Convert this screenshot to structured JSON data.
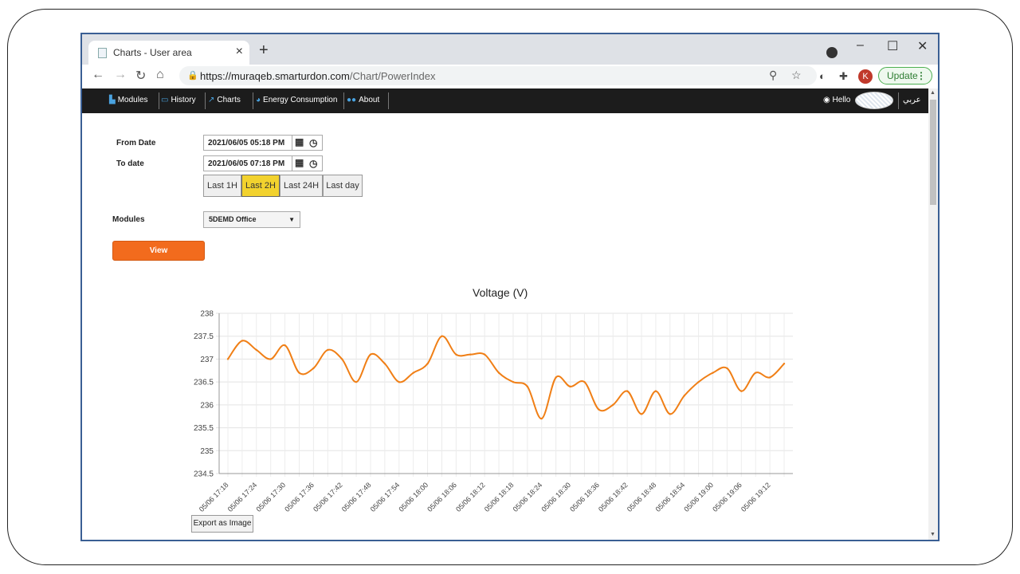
{
  "browser": {
    "tab_title": "Charts - User area",
    "url_host": "https://muraqeb.smarturdon.com",
    "url_path": "/Chart/PowerIndex",
    "avatar_letter": "K",
    "update_label": "Update"
  },
  "sitenav": {
    "items": [
      {
        "label": "Modules",
        "icon": "binoculars-icon"
      },
      {
        "label": "History",
        "icon": "history-icon"
      },
      {
        "label": "Charts",
        "icon": "line-chart-icon"
      },
      {
        "label": "Energy Consumption",
        "icon": "pie-chart-icon"
      },
      {
        "label": "About",
        "icon": "users-icon"
      }
    ],
    "hello": "Hello",
    "language": "عربي"
  },
  "form": {
    "from_label": "From Date",
    "from_value": "2021/06/05 05:18 PM",
    "to_label": "To date",
    "to_value": "2021/06/05 07:18 PM",
    "ranges": [
      "Last 1H",
      "Last 2H",
      "Last 24H",
      "Last day"
    ],
    "active_range": "Last 2H",
    "modules_label": "Modules",
    "module_selected": "5DEMD Office",
    "view_label": "View",
    "export_label": "Export as Image"
  },
  "colors": {
    "accent": "#f26b1d",
    "active_button": "#f2d22e",
    "line": "#f07f16"
  },
  "chart_data": {
    "type": "line",
    "title": "Voltage (V)",
    "xlabel": "",
    "ylabel": "",
    "ylim": [
      234.5,
      238
    ],
    "yticks": [
      "238",
      "237.5",
      "237",
      "236.5",
      "236",
      "235.5",
      "235",
      "234.5"
    ],
    "tick_labels": [
      "05/06 17:18",
      "05/06 17:24",
      "05/06 17:30",
      "05/06 17:36",
      "05/06 17:42",
      "05/06 17:48",
      "05/06 17:54",
      "05/06 18:00",
      "05/06 18:06",
      "05/06 18:12",
      "05/06 18:18",
      "05/06 18:24",
      "05/06 18:30",
      "05/06 18:36",
      "05/06 18:42",
      "05/06 18:48",
      "05/06 18:54",
      "05/06 19:00",
      "05/06 19:06",
      "05/06 19:12"
    ],
    "grid": true,
    "series": [
      {
        "x": [
          "05/06 17:18",
          "05/06 17:21",
          "05/06 17:24",
          "05/06 17:27",
          "05/06 17:30",
          "05/06 17:33",
          "05/06 17:36",
          "05/06 17:39",
          "05/06 17:42",
          "05/06 17:45",
          "05/06 17:48",
          "05/06 17:51",
          "05/06 17:54",
          "05/06 17:57",
          "05/06 18:00",
          "05/06 18:03",
          "05/06 18:06",
          "05/06 18:09",
          "05/06 18:12",
          "05/06 18:15",
          "05/06 18:18",
          "05/06 18:21",
          "05/06 18:24",
          "05/06 18:27",
          "05/06 18:30",
          "05/06 18:33",
          "05/06 18:36",
          "05/06 18:39",
          "05/06 18:42",
          "05/06 18:45",
          "05/06 18:48",
          "05/06 18:51",
          "05/06 18:54",
          "05/06 18:57",
          "05/06 19:00",
          "05/06 19:03",
          "05/06 19:06",
          "05/06 19:09",
          "05/06 19:12",
          "05/06 19:15"
        ],
        "values": [
          237.0,
          237.4,
          237.2,
          237.0,
          237.3,
          236.7,
          236.8,
          237.2,
          237.0,
          236.5,
          237.1,
          236.9,
          236.5,
          236.7,
          236.9,
          237.5,
          237.1,
          237.1,
          237.1,
          236.7,
          236.5,
          236.4,
          235.7,
          236.6,
          236.4,
          236.5,
          235.9,
          236.0,
          236.3,
          235.8,
          236.3,
          235.8,
          236.2,
          236.5,
          236.7,
          236.8,
          236.3,
          236.7,
          236.6,
          236.9
        ]
      }
    ]
  }
}
